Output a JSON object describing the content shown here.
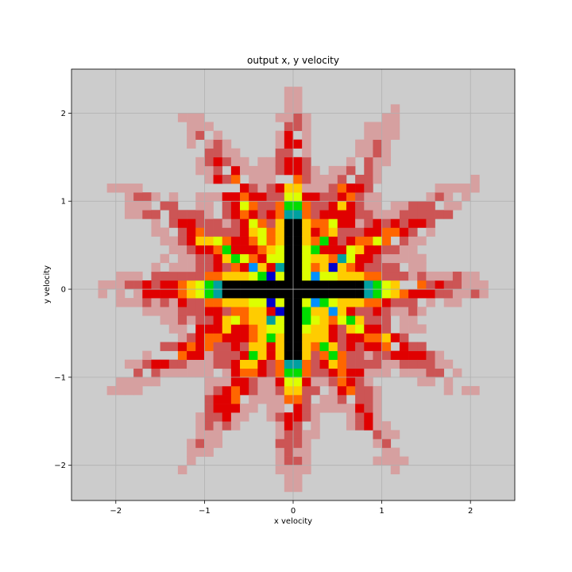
{
  "chart_data": {
    "type": "heatmap",
    "title": "output x, y velocity",
    "xlabel": "x velocity",
    "ylabel": "y velocity",
    "xlim": [
      -2.5,
      2.5
    ],
    "ylim": [
      -2.4,
      2.5
    ],
    "xticks": [
      -2,
      -1,
      0,
      1,
      2
    ],
    "yticks": [
      -2,
      -1,
      0,
      1,
      2
    ],
    "xtick_labels": [
      "−2",
      "−1",
      "0",
      "1",
      "2"
    ],
    "ytick_labels": [
      "−2",
      "−1",
      "0",
      "1",
      "2"
    ],
    "grid": true,
    "background_color": "#cccccc",
    "bin_width": 0.1,
    "value_range": [
      0,
      1
    ],
    "description_of_values": "relative density; pattern is a symmetric star centered at (0,0) with 12 rays, dense cross along both axes",
    "colormap": [
      {
        "stop": 0.0,
        "color": "#cccccc"
      },
      {
        "stop": 0.12,
        "color": "#d6a0a0"
      },
      {
        "stop": 0.3,
        "color": "#cc5555"
      },
      {
        "stop": 0.42,
        "color": "#e00000"
      },
      {
        "stop": 0.56,
        "color": "#ff6600"
      },
      {
        "stop": 0.64,
        "color": "#ffcc00"
      },
      {
        "stop": 0.72,
        "color": "#ddff00"
      },
      {
        "stop": 0.8,
        "color": "#00dd00"
      },
      {
        "stop": 0.86,
        "color": "#00a0a0"
      },
      {
        "stop": 0.91,
        "color": "#0090ff"
      },
      {
        "stop": 0.95,
        "color": "#0000cc"
      },
      {
        "stop": 1.0,
        "color": "#000000"
      }
    ]
  }
}
